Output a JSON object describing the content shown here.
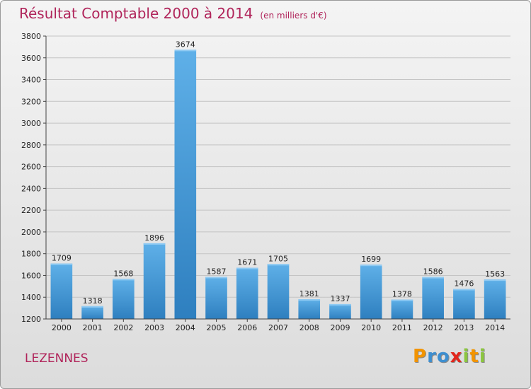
{
  "header": {
    "title": "Résultat Comptable 2000 à 2014",
    "unit": "(en milliers d'€)"
  },
  "footer": {
    "town": "LEZENNES",
    "logo_letters": [
      "P",
      "r",
      "o",
      "x",
      "i",
      "t",
      "i"
    ]
  },
  "colors": {
    "title": "#b0245a",
    "bar_light": "#5fb0e8",
    "bar_dark": "#2e7fbf",
    "logo": [
      "#f29400",
      "#3e8fd0",
      "#3e8fd0",
      "#e2261c",
      "#8cc63f",
      "#f29400",
      "#8cc63f"
    ]
  },
  "chart_data": {
    "type": "bar",
    "title": "Résultat Comptable 2000 à 2014",
    "xlabel": "",
    "ylabel": "",
    "categories": [
      "2000",
      "2001",
      "2002",
      "2003",
      "2004",
      "2005",
      "2006",
      "2007",
      "2008",
      "2009",
      "2010",
      "2011",
      "2012",
      "2013",
      "2014"
    ],
    "values": [
      1709,
      1318,
      1568,
      1896,
      3674,
      1587,
      1671,
      1705,
      1381,
      1337,
      1699,
      1378,
      1586,
      1476,
      1563
    ],
    "ylim": [
      1200,
      3800
    ],
    "yticks": [
      1200,
      1400,
      1600,
      1800,
      2000,
      2200,
      2400,
      2600,
      2800,
      3000,
      3200,
      3400,
      3600,
      3800
    ],
    "grid": true
  }
}
